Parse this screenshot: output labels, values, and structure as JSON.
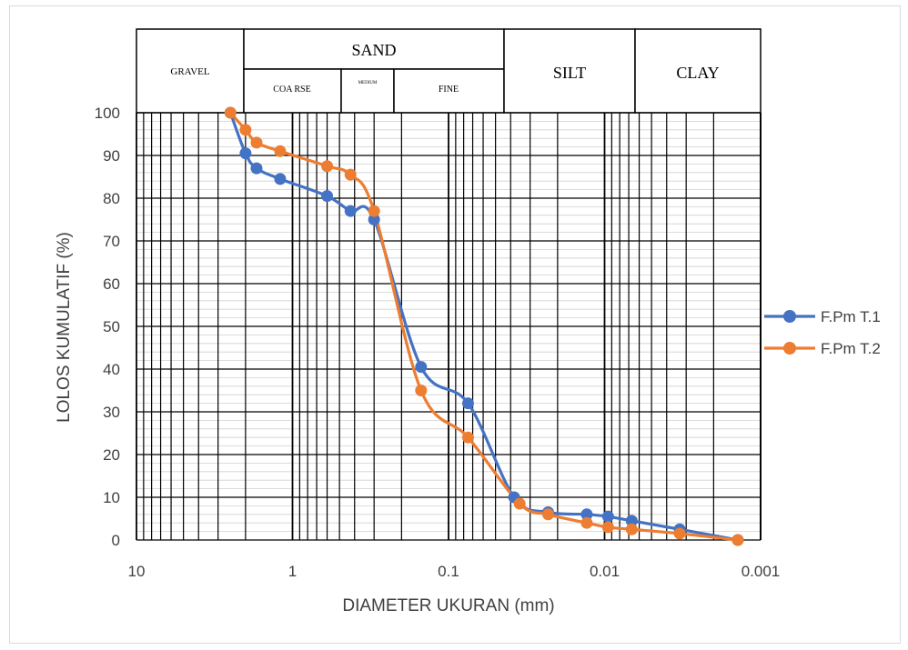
{
  "chart_data": {
    "type": "line",
    "xlabel": "DIAMETER UKURAN (mm)",
    "ylabel": "LOLOS KUMULATIF (%)",
    "x_scale": "log",
    "x_reversed": true,
    "xlim": [
      10,
      0.001
    ],
    "ylim": [
      0,
      100
    ],
    "x_ticks": [
      10,
      1,
      0.1,
      0.01,
      0.001
    ],
    "x_tick_labels": [
      "10",
      "1",
      "0.1",
      "0.01",
      "0.001"
    ],
    "y_ticks": [
      0,
      10,
      20,
      30,
      40,
      50,
      60,
      70,
      80,
      90,
      100
    ],
    "legend_position": "right",
    "grid": true,
    "series": [
      {
        "name": "F.Pm T.1",
        "color": "#4472c4",
        "x": [
          2.5,
          2.0,
          1.7,
          1.2,
          0.6,
          0.425,
          0.3,
          0.15,
          0.075,
          0.038,
          0.023,
          0.013,
          0.0095,
          0.0067,
          0.0033,
          0.0014
        ],
        "y": [
          100,
          90.5,
          87,
          84.5,
          80.5,
          77,
          75,
          40.5,
          32,
          10,
          6.5,
          6,
          5.5,
          4.5,
          2.5,
          0
        ]
      },
      {
        "name": "F.Pm T.2",
        "color": "#ed7d31",
        "x": [
          2.5,
          2.0,
          1.7,
          1.2,
          0.6,
          0.425,
          0.3,
          0.15,
          0.075,
          0.035,
          0.023,
          0.013,
          0.0095,
          0.0067,
          0.0033,
          0.0014
        ],
        "y": [
          100,
          96,
          93,
          91,
          87.5,
          85.5,
          77,
          35,
          24,
          8.5,
          6,
          4,
          3,
          2.5,
          1.5,
          0
        ]
      }
    ],
    "classification_header": {
      "gravel": "GRAVEL",
      "sand": "SAND",
      "coarse": "COA RSE",
      "medium": "MEDIUM",
      "fine": "FINE",
      "silt": "SILT",
      "clay": "CLAY"
    }
  }
}
